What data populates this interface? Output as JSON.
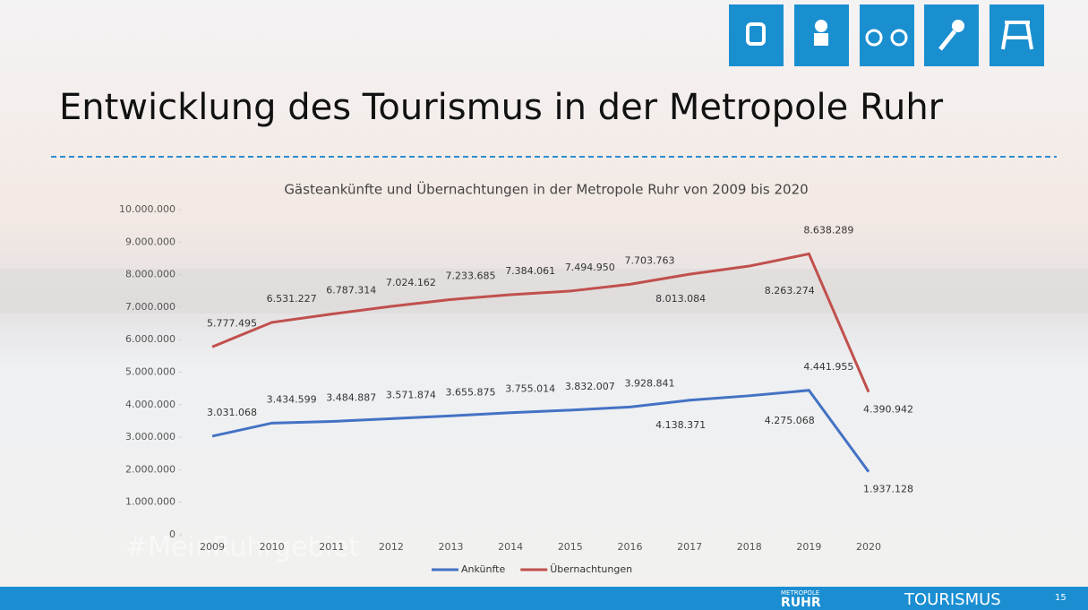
{
  "slide": {
    "title": "Entwicklung des Tourismus in der Metropole Ruhr",
    "watermark": "#MeinRuhrgebiet",
    "footer_small": "METROPOLE",
    "footer_brand": "RUHR",
    "footer_name": "TOURISMUS",
    "page_number": "15"
  },
  "chart_data": {
    "type": "line",
    "title": "Gästeankünfte und Übernachtungen in der Metropole Ruhr von 2009 bis 2020",
    "categories": [
      "2009",
      "2010",
      "2011",
      "2012",
      "2013",
      "2014",
      "2015",
      "2016",
      "2017",
      "2018",
      "2019",
      "2020"
    ],
    "series": [
      {
        "name": "Ankünfte",
        "color": "#4472c4",
        "values": [
          3031068,
          3434599,
          3484887,
          3571874,
          3655875,
          3755014,
          3832007,
          3928841,
          4138371,
          4275068,
          4441955,
          1937128
        ],
        "value_labels": [
          "3.031.068",
          "3.434.599",
          "3.484.887",
          "3.571.874",
          "3.655.875",
          "3.755.014",
          "3.832.007",
          "3.928.841",
          "4.138.371",
          "4.275.068",
          "4.441.955",
          "1.937.128"
        ]
      },
      {
        "name": "Übernachtungen",
        "color": "#c0504d",
        "values": [
          5777495,
          6531227,
          6787314,
          7024162,
          7233685,
          7384061,
          7494950,
          7703763,
          8013084,
          8263274,
          8638289,
          4390942
        ],
        "value_labels": [
          "5.777.495",
          "6.531.227",
          "6.787.314",
          "7.024.162",
          "7.233.685",
          "7.384.061",
          "7.494.950",
          "7.703.763",
          "8.013.084",
          "8.263.274",
          "8.638.289",
          "4.390.942"
        ]
      }
    ],
    "ylim": [
      0,
      10000000
    ],
    "yticks": [
      0,
      {
        "value": 1000000,
        "label": "1.000.000"
      },
      {
        "value": 2000000,
        "label": "2.000.000"
      },
      {
        "value": 3000000,
        "label": "3.000.000"
      },
      {
        "value": 4000000,
        "label": "4.000.000"
      },
      {
        "value": 5000000,
        "label": "5.000.000"
      },
      {
        "value": 6000000,
        "label": "6.000.000"
      },
      {
        "value": 7000000,
        "label": "7.000.000"
      },
      {
        "value": 8000000,
        "label": "8.000.000"
      },
      {
        "value": 9000000,
        "label": "9.000.000"
      },
      {
        "value": 10000000,
        "label": "10.000.000"
      }
    ],
    "grid": false,
    "legend": "bottom"
  }
}
